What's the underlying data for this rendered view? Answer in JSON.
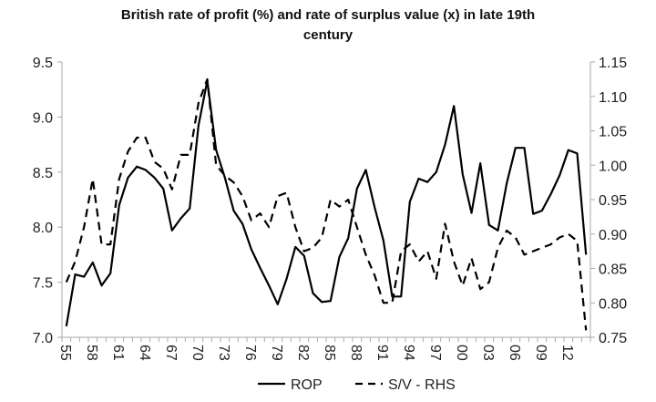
{
  "chart_data": {
    "type": "line",
    "title_line1": "British rate of profit (%) and rate of surplus value (x) in late 19th",
    "title_line2": "century",
    "categories": [
      "55",
      "56",
      "57",
      "58",
      "59",
      "60",
      "61",
      "62",
      "63",
      "64",
      "65",
      "66",
      "67",
      "68",
      "69",
      "70",
      "71",
      "72",
      "73",
      "74",
      "75",
      "76",
      "77",
      "78",
      "79",
      "80",
      "81",
      "82",
      "83",
      "84",
      "85",
      "86",
      "87",
      "88",
      "89",
      "90",
      "91",
      "92",
      "93",
      "94",
      "95",
      "96",
      "97",
      "98",
      "99",
      "00",
      "01",
      "02",
      "03",
      "04",
      "05",
      "06",
      "07",
      "08",
      "09",
      "10",
      "11",
      "12",
      "13",
      "14"
    ],
    "tick_labels": [
      "55",
      "58",
      "61",
      "64",
      "67",
      "70",
      "73",
      "76",
      "79",
      "82",
      "85",
      "88",
      "91",
      "94",
      "97",
      "00",
      "03",
      "06",
      "09",
      "12"
    ],
    "left_axis": {
      "ylim": [
        7.0,
        9.5
      ],
      "ticks": [
        "7.0",
        "7.5",
        "8.0",
        "8.5",
        "9.0",
        "9.5"
      ]
    },
    "right_axis": {
      "ylim": [
        0.75,
        1.15
      ],
      "ticks": [
        "0.75",
        "0.80",
        "0.85",
        "0.90",
        "0.95",
        "1.00",
        "1.05",
        "1.10",
        "1.15"
      ]
    },
    "series": [
      {
        "name": "ROP",
        "axis": "left",
        "style": "solid",
        "values": [
          7.1,
          7.57,
          7.55,
          7.68,
          7.47,
          7.58,
          8.2,
          8.45,
          8.55,
          8.52,
          8.45,
          8.35,
          7.97,
          8.08,
          8.17,
          8.92,
          9.33,
          8.7,
          8.45,
          8.15,
          8.03,
          7.8,
          7.63,
          7.47,
          7.3,
          7.53,
          7.82,
          7.74,
          7.4,
          7.32,
          7.33,
          7.73,
          7.9,
          8.35,
          8.52,
          8.18,
          7.88,
          7.37,
          7.37,
          8.23,
          8.44,
          8.41,
          8.5,
          8.75,
          9.1,
          8.48,
          8.13,
          8.58,
          8.02,
          7.97,
          8.4,
          8.72,
          8.72,
          8.12,
          8.15,
          8.3,
          8.47,
          8.7,
          8.67,
          7.75
        ]
      },
      {
        "name": "S/V - RHS",
        "axis": "right",
        "style": "dashed",
        "values": [
          0.83,
          0.86,
          0.91,
          0.98,
          0.885,
          0.885,
          0.98,
          1.02,
          1.04,
          1.04,
          1.005,
          0.995,
          0.965,
          1.015,
          1.015,
          1.09,
          1.125,
          1.0,
          0.985,
          0.975,
          0.955,
          0.92,
          0.93,
          0.91,
          0.955,
          0.96,
          0.91,
          0.875,
          0.88,
          0.895,
          0.95,
          0.94,
          0.95,
          0.91,
          0.87,
          0.84,
          0.8,
          0.8,
          0.875,
          0.885,
          0.86,
          0.875,
          0.835,
          0.915,
          0.86,
          0.825,
          0.865,
          0.82,
          0.83,
          0.88,
          0.905,
          0.895,
          0.87,
          0.875,
          0.88,
          0.885,
          0.895,
          0.9,
          0.89,
          0.76
        ]
      }
    ],
    "legend_position": "bottom",
    "grid": false
  }
}
